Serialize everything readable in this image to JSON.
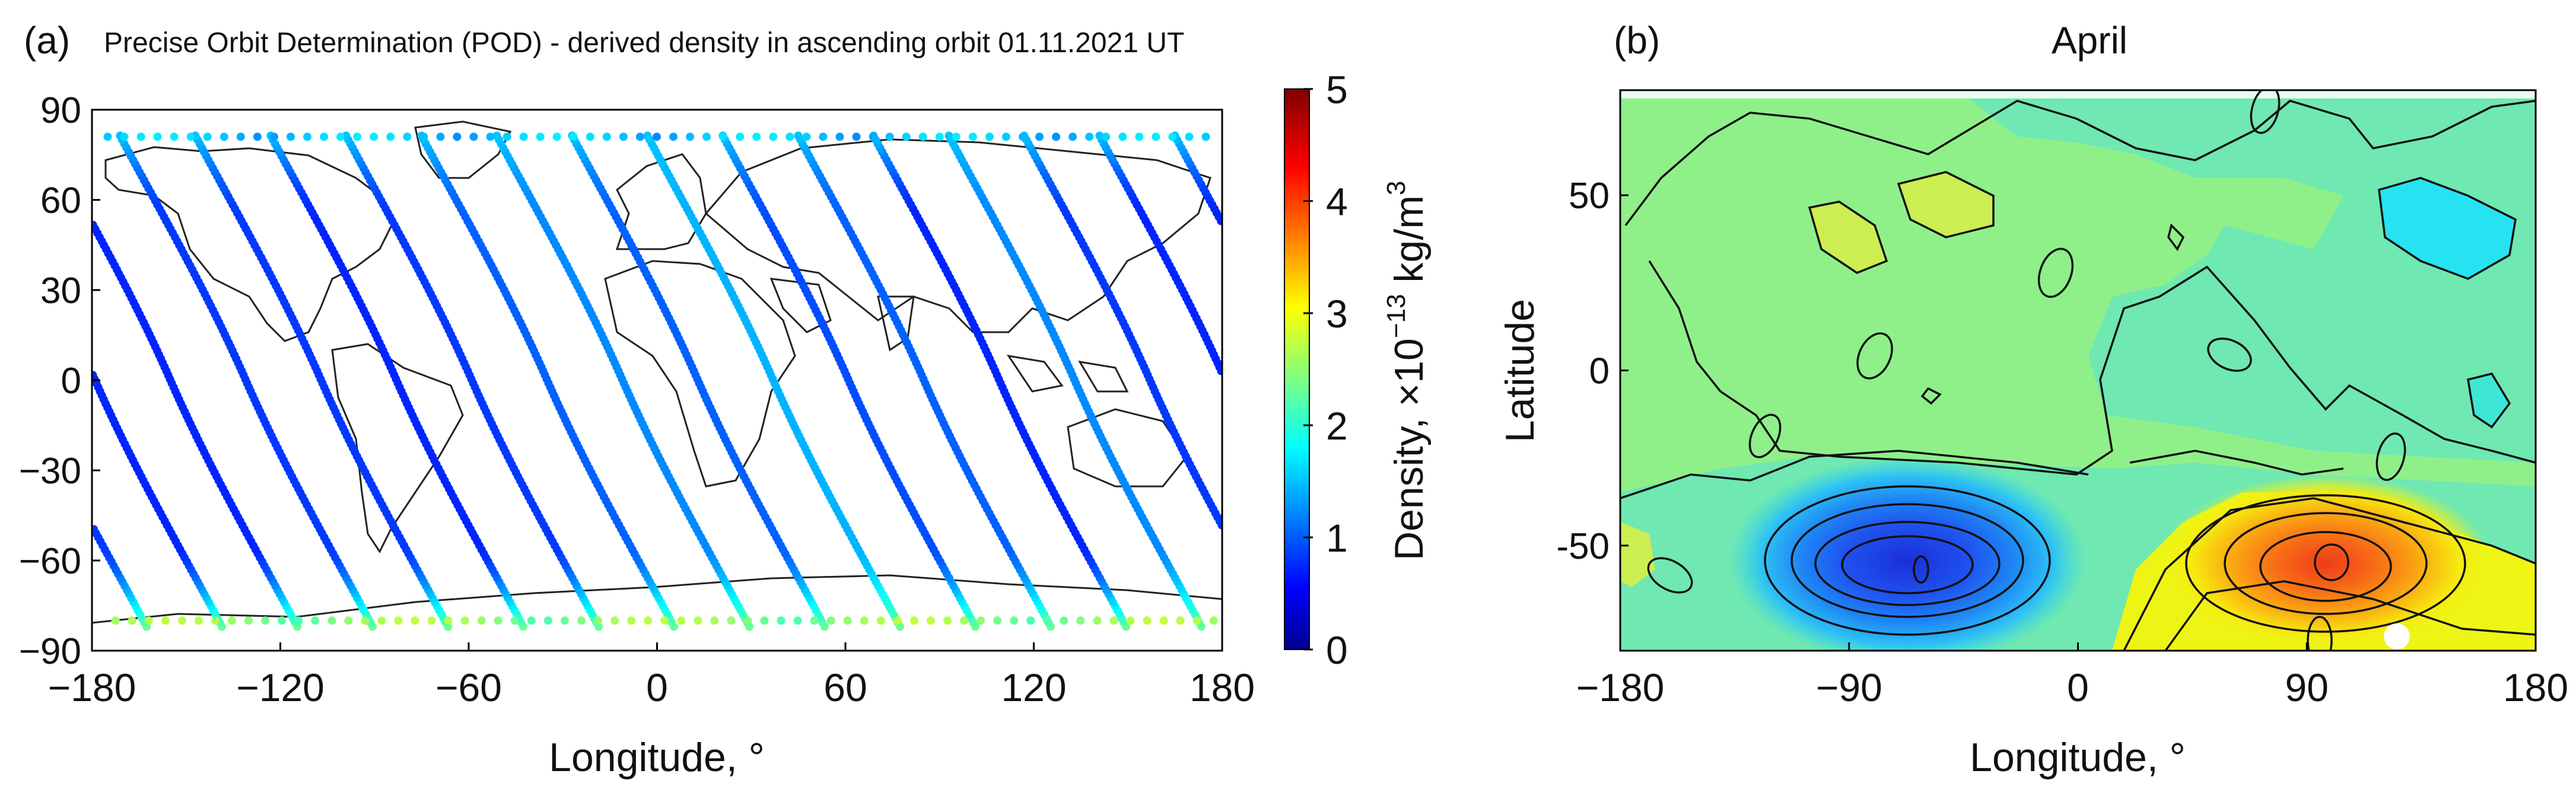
{
  "panels": {
    "a": {
      "tag": "(a)",
      "title": "Precise Orbit Determination (POD) - derived density in ascending orbit 01.11.2021 UT",
      "xlabel": "Longitude, °",
      "xticks": [
        "−180",
        "−120",
        "−60",
        "0",
        "60",
        "120",
        "180"
      ],
      "yticks": [
        "90",
        "60",
        "30",
        "0",
        "−30",
        "−60",
        "−90"
      ],
      "colorbar": {
        "label": "Density, ×10",
        "exp": "−13",
        "unit": " kg/m",
        "unit_exp": "3",
        "ticks": [
          "0",
          "1",
          "2",
          "3",
          "4",
          "5"
        ]
      }
    },
    "b": {
      "tag": "(b)",
      "title": "April",
      "xlabel": "Longitude, °",
      "ylabel": "Latitude",
      "xticks": [
        "−180",
        "−90",
        "0",
        "90",
        "180"
      ],
      "yticks": [
        "50",
        "0",
        "-50"
      ]
    }
  },
  "chart_data": [
    {
      "type": "scatter",
      "panel": "a",
      "title": "Precise Orbit Determination (POD) - derived density in ascending orbit 01.11.2021 UT",
      "xlabel": "Longitude, °",
      "ylabel": "",
      "xlim": [
        -180,
        180
      ],
      "ylim": [
        -90,
        90
      ],
      "colorbar": {
        "label": "Density, ×10^-13 kg/m^3",
        "range": [
          0,
          5
        ],
        "colormap": "jet"
      },
      "orbit_tracks": [
        {
          "equator_lon": -179,
          "density_equator": 0.8
        },
        {
          "equator_lon": -155,
          "density_equator": 0.8
        },
        {
          "equator_lon": -131,
          "density_equator": 0.9
        },
        {
          "equator_lon": -107,
          "density_equator": 0.9
        },
        {
          "equator_lon": -83,
          "density_equator": 0.8
        },
        {
          "equator_lon": -59,
          "density_equator": 0.9
        },
        {
          "equator_lon": -35,
          "density_equator": 1.1
        },
        {
          "equator_lon": -11,
          "density_equator": 1.3
        },
        {
          "equator_lon": 13,
          "density_equator": 1.1
        },
        {
          "equator_lon": 37,
          "density_equator": 1.5
        },
        {
          "equator_lon": 61,
          "density_equator": 1.0
        },
        {
          "equator_lon": 85,
          "density_equator": 1.1
        },
        {
          "equator_lon": 109,
          "density_equator": 0.8
        },
        {
          "equator_lon": 133,
          "density_equator": 1.3
        },
        {
          "equator_lon": 157,
          "density_equator": 0.9
        }
      ],
      "polar_density_north": 1.6,
      "polar_density_south": 2.4
    },
    {
      "type": "heatmap",
      "panel": "b",
      "title": "April",
      "xlabel": "Longitude, °",
      "ylabel": "Latitude",
      "xlim": [
        -180,
        180
      ],
      "ylim": [
        -80,
        80
      ],
      "features": [
        {
          "kind": "minimum",
          "lon": -75,
          "lat": -55,
          "value": 0.9
        },
        {
          "kind": "maximum",
          "lon": 90,
          "lat": -55,
          "value": 4.0
        },
        {
          "kind": "minimum",
          "lon": 140,
          "lat": 45,
          "value": 1.7
        },
        {
          "kind": "maximum",
          "lon": -80,
          "lat": 50,
          "value": 2.8
        }
      ]
    }
  ]
}
